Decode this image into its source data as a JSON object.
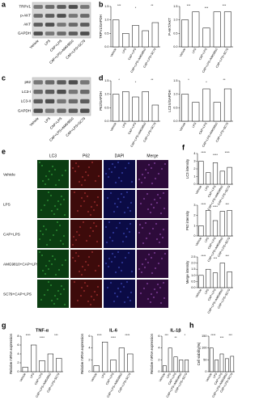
{
  "panel_labels": [
    "a",
    "b",
    "c",
    "d",
    "e",
    "f",
    "g",
    "h"
  ],
  "blots": [
    {
      "proteins": [
        "TRPV1",
        "p-AKT",
        "AKT",
        "GAPDH"
      ],
      "lanes": [
        "Vehicle",
        "LPS",
        "CAP+LPS",
        "CAP+LPS+AMG9810",
        "CAP+LPS+SC79"
      ]
    },
    {
      "proteins": [
        "p62",
        "LC3-I",
        "LC3-II",
        "GAPDH"
      ],
      "lanes": [
        "Vehicle",
        "LPS",
        "CAP+LPS",
        "CAP+LPS+AMG9810",
        "CAP+LPS+SC79"
      ]
    }
  ],
  "microscopy": {
    "columns": [
      "LC3",
      "P62",
      "DAPI",
      "Merge"
    ],
    "rows": [
      "Vehicle",
      "LPS",
      "CAP+LPS",
      "AMG9810+CAP+LPS",
      "SC79+CAP+LPS"
    ]
  },
  "chart_data": [
    {
      "type": "bar",
      "ylabel": "TRPV1/GAPDH",
      "categories": [
        "Vehicle",
        "LPS",
        "CAP+LPS",
        "CAP+LPS+AMG9810",
        "CAP+LPS+SC79"
      ],
      "values": [
        1.0,
        0.5,
        0.8,
        0.6,
        0.9
      ],
      "ylim": [
        0,
        1.5
      ],
      "yticks": [
        {
          "value": 0,
          "label": "0.0"
        },
        {
          "value": 0.5,
          "label": "0.5"
        },
        {
          "value": 1,
          "label": "1.0"
        },
        {
          "value": 1.5,
          "label": "1.5"
        }
      ],
      "annotations": [
        "***",
        "*",
        "**"
      ],
      "color": "#ffffff"
    },
    {
      "type": "bar",
      "ylabel": "P-AKT/AKT",
      "categories": [
        "Vehicle",
        "LPS",
        "CAP+LPS",
        "CAP+LPS+AMG9810",
        "CAP+LPS+SC79"
      ],
      "values": [
        1.0,
        1.3,
        0.7,
        1.3,
        1.3
      ],
      "ylim": [
        0,
        1.5
      ],
      "yticks": [
        {
          "value": 0,
          "label": "0.0"
        },
        {
          "value": 0.5,
          "label": "0.5"
        },
        {
          "value": 1,
          "label": "1.0"
        },
        {
          "value": 1.5,
          "label": "1.5"
        }
      ],
      "annotations": [
        "***",
        "***",
        "***"
      ],
      "color": "#ffffff"
    },
    {
      "type": "bar",
      "ylabel": "P62/GAPDH",
      "categories": [
        "Vehicle",
        "LPS",
        "CAP+LPS",
        "CAP+LPS+AMG9810",
        "CAP+LPS+SC79"
      ],
      "values": [
        1.0,
        1.1,
        0.9,
        1.1,
        0.6
      ],
      "ylim": [
        0,
        1.5
      ],
      "yticks": [
        {
          "value": 0,
          "label": "0.0"
        },
        {
          "value": 0.5,
          "label": "0.5"
        },
        {
          "value": 1,
          "label": "1.0"
        },
        {
          "value": 1.5,
          "label": "1.5"
        }
      ],
      "annotations": [
        "*",
        "*",
        "**"
      ],
      "color": "#ffffff"
    },
    {
      "type": "bar",
      "ylabel": "LC3 II/GAPDH",
      "categories": [
        "Vehicle",
        "LPS",
        "CAP+LPS",
        "CAP+LPS+AMG9810",
        "CAP+LPS+SC79"
      ],
      "values": [
        1.0,
        0.7,
        1.2,
        0.7,
        1.2
      ],
      "ylim": [
        0,
        1.5
      ],
      "yticks": [
        {
          "value": 0,
          "label": "0.0"
        },
        {
          "value": 0.5,
          "label": "0.5"
        },
        {
          "value": 1,
          "label": "1.0"
        },
        {
          "value": 1.5,
          "label": "1.5"
        }
      ],
      "annotations": [
        "*",
        "*",
        "**"
      ],
      "color": "#ffffff"
    },
    {
      "type": "bar",
      "ylabel": "LC3 intensity",
      "categories": [
        "Vehicle",
        "LPS",
        "CAP+LPS",
        "CAP+LPS+AMG9810",
        "CAP+LPS+SC79"
      ],
      "values": [
        3.0,
        1.5,
        2.8,
        1.7,
        2.2
      ],
      "ylim": [
        0,
        4
      ],
      "yticks": [
        0,
        1,
        2,
        3,
        4
      ],
      "annotations": [
        "****",
        "****",
        "****"
      ],
      "color": "#ffffff"
    },
    {
      "type": "bar",
      "ylabel": "P62 intensity",
      "categories": [
        "Vehicle",
        "LPS",
        "CAP+LPS",
        "CAP+LPS+AMG9810",
        "CAP+LPS+SC79"
      ],
      "values": [
        1.0,
        2.5,
        1.5,
        2.4,
        2.5
      ],
      "ylim": [
        0,
        3
      ],
      "yticks": [
        0,
        1,
        2,
        3
      ],
      "annotations": [
        "****",
        "****",
        "***"
      ],
      "color": "#ffffff"
    },
    {
      "type": "bar",
      "ylabel": "Merge intensity",
      "categories": [
        "Vehicle",
        "LPS",
        "CAP+LPS",
        "CAP+LPS+AMG9810",
        "CAP+LPS+SC79"
      ],
      "values": [
        1.0,
        1.5,
        1.2,
        2.0,
        1.3
      ],
      "ylim": [
        0,
        2.5
      ],
      "yticks": [
        {
          "value": 0,
          "label": "0.0"
        },
        {
          "value": 0.5,
          "label": "0.5"
        },
        {
          "value": 1,
          "label": "1.0"
        },
        {
          "value": 1.5,
          "label": "1.5"
        },
        {
          "value": 2,
          "label": "2.0"
        },
        {
          "value": 2.5,
          "label": "2.5"
        }
      ],
      "annotations": [
        "****",
        "***",
        "***"
      ],
      "color": "#ffffff"
    },
    {
      "type": "bar",
      "title": "TNF-α",
      "ylabel": "Relative mRNA expression",
      "categories": [
        "Vehicle",
        "LPS",
        "CAP+LPS",
        "CAP+LPS+AMG9810",
        "CAP+LPS+SC79"
      ],
      "values": [
        1,
        6,
        2.5,
        4,
        3
      ],
      "ylim": [
        0,
        8
      ],
      "yticks": [
        0,
        2,
        4,
        6,
        8
      ],
      "annotations": [
        "****",
        "****",
        "***"
      ],
      "color": "#ffffff"
    },
    {
      "type": "bar",
      "title": "IL-6",
      "ylabel": "Relative mRNA expression",
      "categories": [
        "Vehicle",
        "LPS",
        "CAP+LPS",
        "CAP+LPS+AMG9810",
        "CAP+LPS+SC79"
      ],
      "values": [
        1,
        5,
        2,
        4,
        3
      ],
      "ylim": [
        0,
        6
      ],
      "yticks": [
        0,
        2,
        4,
        6
      ],
      "annotations": [
        "****",
        "****",
        "****"
      ],
      "color": "#ffffff"
    },
    {
      "type": "bar",
      "title": "IL-1β",
      "ylabel": "Relative mRNA expression",
      "categories": [
        "Vehicle",
        "LPS",
        "CAP+LPS",
        "CAP+LPS+AMG9810",
        "CAP+LPS+SC79"
      ],
      "values": [
        1,
        4,
        2.5,
        2,
        2
      ],
      "ylim": [
        0,
        6
      ],
      "yticks": [
        0,
        2,
        4,
        6
      ],
      "annotations": [
        "***",
        "**",
        "*"
      ],
      "color": "#ffffff"
    },
    {
      "type": "bar",
      "ylabel": "Cell viability(%)",
      "categories": [
        "Vehicle",
        "LPS",
        "CAP+LPS",
        "CAP+LPS+AMG9810",
        "CAP+LPS+SC79"
      ],
      "values": [
        100,
        50,
        75,
        55,
        65
      ],
      "ylim": [
        0,
        150
      ],
      "yticks": [
        0,
        50,
        100,
        150
      ],
      "annotations": [
        "****",
        "***",
        "***"
      ],
      "color": "#ffffff"
    }
  ]
}
